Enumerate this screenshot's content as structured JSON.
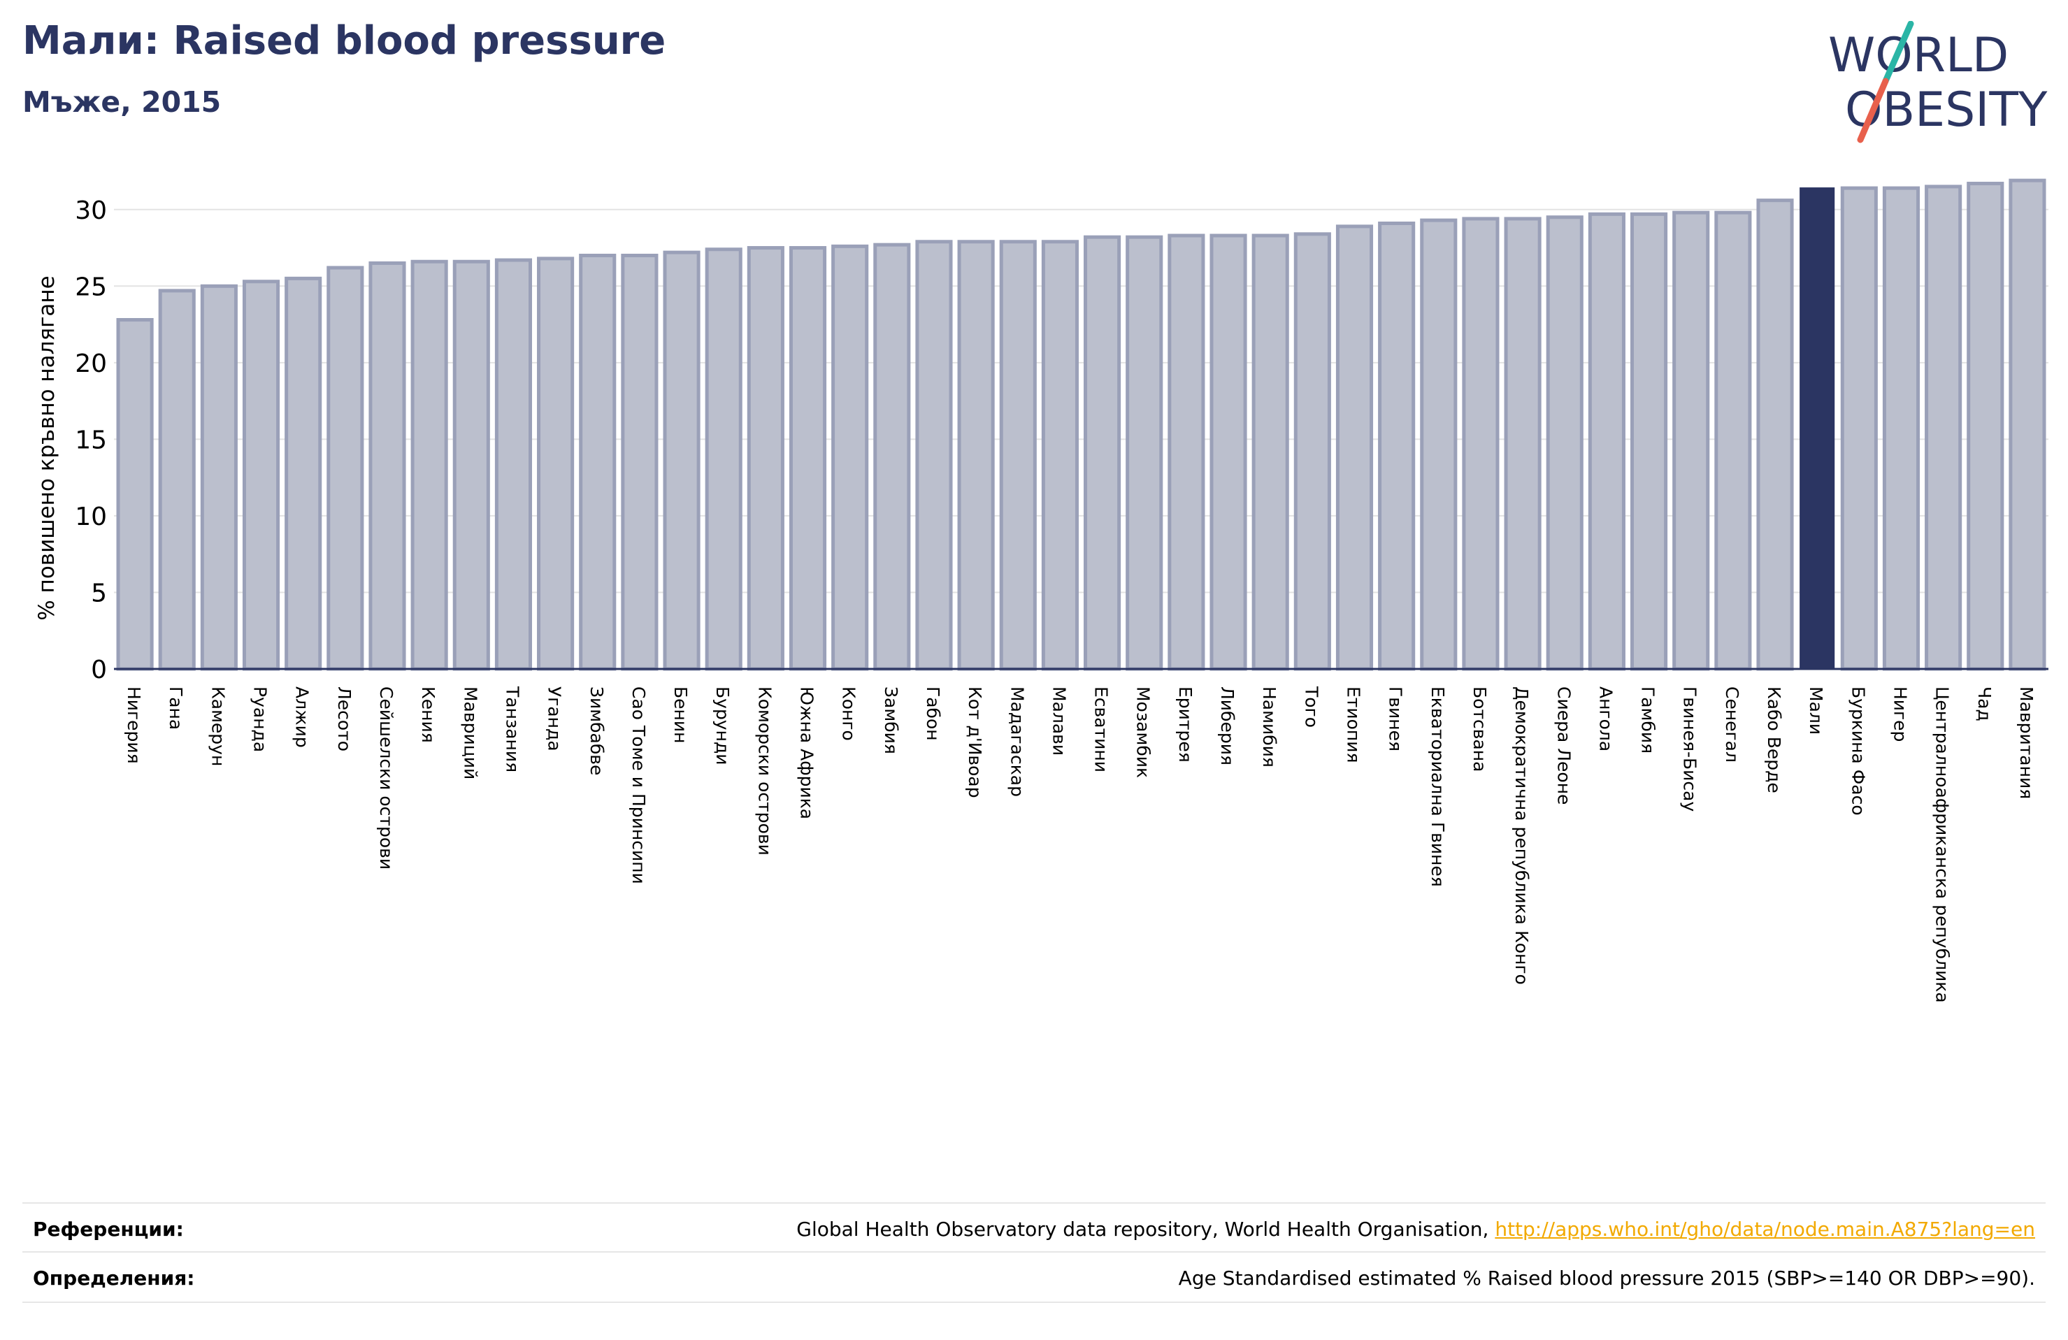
{
  "header": {
    "title": "Мали: Raised blood pressure",
    "subtitle": "Мъже, 2015"
  },
  "logo": {
    "line1": "WORLD",
    "line2": "OBESITY",
    "text_color": "#2b3562",
    "slash_teal": "#2bb5a6",
    "slash_red": "#e8604c"
  },
  "colors": {
    "bar_fill": "#bbbfcd",
    "bar_stroke": "#9aa0b8",
    "highlight": "#2b3562",
    "grid": "#e3e3e3",
    "axis": "#2b3562"
  },
  "chart_data": {
    "type": "bar",
    "title": "Мали: Raised blood pressure",
    "subtitle": "Мъже, 2015",
    "xlabel": "",
    "ylabel": "% повишено кръвно налягане",
    "ylim": [
      0,
      32.5
    ],
    "yticks": [
      0,
      5,
      10,
      15,
      20,
      25,
      30
    ],
    "grid": true,
    "highlight_category": "Мали",
    "categories": [
      "Нигерия",
      "Гана",
      "Камерун",
      "Руанда",
      "Алжир",
      "Лесото",
      "Сейшелски острови",
      "Кения",
      "Мавриций",
      "Танзания",
      "Уганда",
      "Зимбабве",
      "Сао Томе и Принсипи",
      "Бенин",
      "Бурунди",
      "Коморски острови",
      "Южна Африка",
      "Конго",
      "Замбия",
      "Габон",
      "Кот д'Ивоар",
      "Мадагаскар",
      "Малави",
      "Есватини",
      "Мозамбик",
      "Еритрея",
      "Либерия",
      "Намибия",
      "Того",
      "Етиопия",
      "Гвинея",
      "Екваториална Гвинея",
      "Ботсвана",
      "Демократична република Конго",
      "Сиера Леоне",
      "Ангола",
      "Гамбия",
      "Гвинея-Бисау",
      "Сенегал",
      "Кабо Верде",
      "Мали",
      "Буркина Фасо",
      "Нигер",
      "Централноафриканска република",
      "Чад",
      "Мавритания"
    ],
    "values": [
      22.8,
      24.7,
      25.0,
      25.3,
      25.5,
      26.2,
      26.5,
      26.6,
      26.6,
      26.7,
      26.8,
      27.0,
      27.0,
      27.2,
      27.4,
      27.5,
      27.5,
      27.6,
      27.7,
      27.9,
      27.9,
      27.9,
      27.9,
      28.2,
      28.2,
      28.3,
      28.3,
      28.3,
      28.4,
      28.9,
      29.1,
      29.3,
      29.4,
      29.4,
      29.5,
      29.7,
      29.7,
      29.8,
      29.8,
      30.6,
      31.4,
      31.4,
      31.4,
      31.5,
      31.7,
      31.9
    ]
  },
  "footer": {
    "references_label": "Референции:",
    "references_text": "Global Health Observatory data repository, World Health Organisation,",
    "references_link": "http://apps.who.int/gho/data/node.main.A875?lang=en",
    "definitions_label": "Определения:",
    "definitions_text": "Age Standardised estimated % Raised blood pressure 2015 (SBP>=140 OR DBP>=90)."
  }
}
